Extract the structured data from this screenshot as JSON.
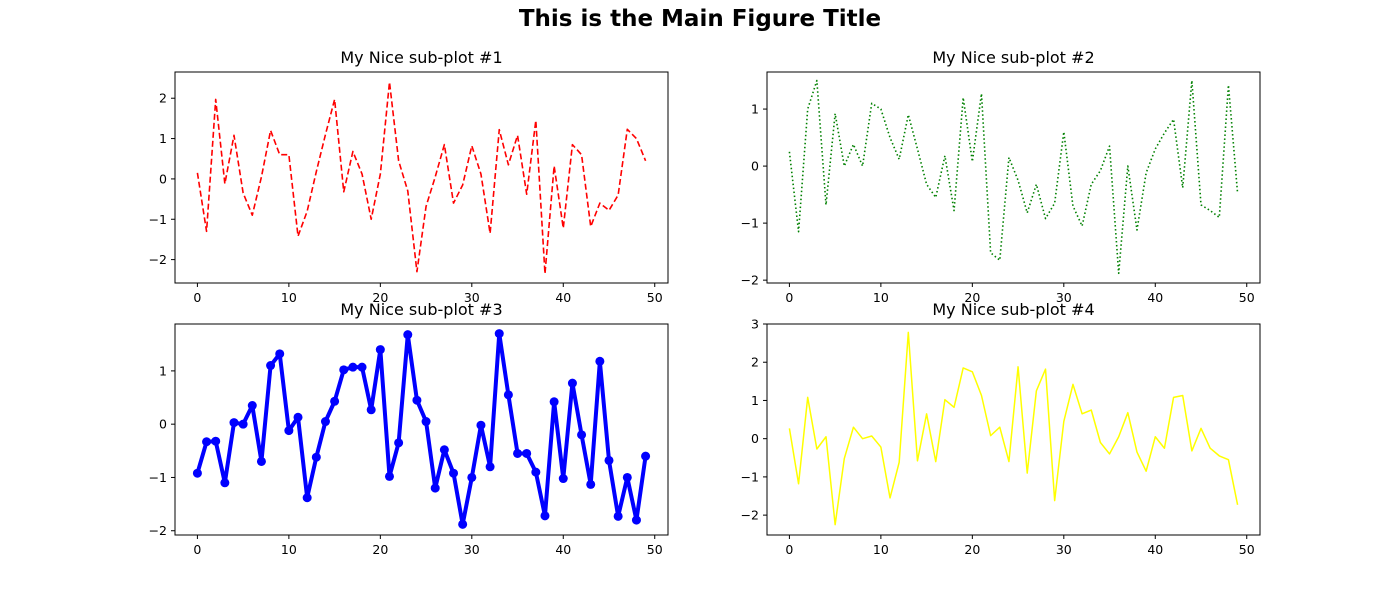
{
  "figure": {
    "title": "This is the Main Figure Title"
  },
  "chart_data": [
    {
      "type": "line",
      "title": "My Nice sub-plot #1",
      "xlabel": "",
      "ylabel": "",
      "xlim": [
        -2.45,
        51.45
      ],
      "ylim": [
        -2.58,
        2.65
      ],
      "xticks": [
        0,
        10,
        20,
        30,
        40,
        50
      ],
      "yticks": [
        -2,
        -1,
        0,
        1,
        2
      ],
      "grid": false,
      "style": {
        "color": "#ff0000",
        "linestyle": "dashed",
        "marker": "none"
      },
      "series": [
        {
          "x": [
            0,
            1,
            2,
            3,
            4,
            5,
            6,
            7,
            8,
            9,
            10,
            11,
            12,
            13,
            14,
            15,
            16,
            17,
            18,
            19,
            20,
            21,
            22,
            23,
            24,
            25,
            26,
            27,
            28,
            29,
            30,
            31,
            32,
            33,
            34,
            35,
            36,
            37,
            38,
            39,
            40,
            41,
            42,
            43,
            44,
            45,
            46,
            47,
            48,
            49
          ],
          "values": [
            0.15,
            -1.3,
            1.97,
            -0.12,
            1.08,
            -0.35,
            -0.9,
            0.05,
            1.2,
            0.6,
            0.6,
            -1.42,
            -0.8,
            0.18,
            1.1,
            1.97,
            -0.32,
            0.68,
            0.12,
            -1.0,
            0.12,
            2.4,
            0.45,
            -0.3,
            -2.3,
            -0.68,
            0.05,
            0.85,
            -0.6,
            -0.15,
            0.82,
            0.12,
            -1.35,
            1.22,
            0.35,
            1.08,
            -0.38,
            1.45,
            -2.35,
            0.32,
            -1.22,
            0.85,
            0.6,
            -1.18,
            -0.6,
            -0.78,
            -0.4,
            1.23,
            1.0,
            0.45
          ]
        }
      ]
    },
    {
      "type": "line",
      "title": "My Nice sub-plot #2",
      "xlabel": "",
      "ylabel": "",
      "xlim": [
        -2.45,
        51.45
      ],
      "ylim": [
        -2.05,
        1.65
      ],
      "xticks": [
        0,
        10,
        20,
        30,
        40,
        50
      ],
      "yticks": [
        -2,
        -1,
        0,
        1
      ],
      "grid": false,
      "style": {
        "color": "#008000",
        "linestyle": "dotted",
        "marker": "none"
      },
      "series": [
        {
          "x": [
            0,
            1,
            2,
            3,
            4,
            5,
            6,
            7,
            8,
            9,
            10,
            11,
            12,
            13,
            14,
            15,
            16,
            17,
            18,
            19,
            20,
            21,
            22,
            23,
            24,
            25,
            26,
            27,
            28,
            29,
            30,
            31,
            32,
            33,
            34,
            35,
            36,
            37,
            38,
            39,
            40,
            41,
            42,
            43,
            44,
            45,
            46,
            47,
            48,
            49
          ],
          "values": [
            0.25,
            -1.15,
            1.0,
            1.5,
            -0.68,
            0.92,
            0.0,
            0.38,
            0.0,
            1.1,
            1.0,
            0.5,
            0.12,
            0.9,
            0.3,
            -0.32,
            -0.55,
            0.18,
            -0.78,
            1.2,
            0.08,
            1.27,
            -1.52,
            -1.65,
            0.15,
            -0.25,
            -0.82,
            -0.32,
            -0.92,
            -0.65,
            0.6,
            -0.7,
            -1.05,
            -0.32,
            -0.08,
            0.35,
            -1.88,
            0.0,
            -1.12,
            -0.12,
            0.3,
            0.58,
            0.82,
            -0.38,
            1.5,
            -0.68,
            -0.78,
            -0.9,
            1.42,
            -0.48
          ]
        }
      ]
    },
    {
      "type": "line",
      "title": "My Nice sub-plot #3",
      "xlabel": "",
      "ylabel": "",
      "xlim": [
        -2.45,
        51.45
      ],
      "ylim": [
        -2.08,
        1.88
      ],
      "xticks": [
        0,
        10,
        20,
        30,
        40,
        50
      ],
      "yticks": [
        -2,
        -1,
        0,
        1
      ],
      "grid": false,
      "style": {
        "color": "#0000ff",
        "linestyle": "solid",
        "marker": "circle",
        "linewidth": 4
      },
      "series": [
        {
          "x": [
            0,
            1,
            2,
            3,
            4,
            5,
            6,
            7,
            8,
            9,
            10,
            11,
            12,
            13,
            14,
            15,
            16,
            17,
            18,
            19,
            20,
            21,
            22,
            23,
            24,
            25,
            26,
            27,
            28,
            29,
            30,
            31,
            32,
            33,
            34,
            35,
            36,
            37,
            38,
            39,
            40,
            41,
            42,
            43,
            44,
            45,
            46,
            47,
            48,
            49
          ],
          "values": [
            -0.92,
            -0.33,
            -0.32,
            -1.1,
            0.03,
            0.0,
            0.35,
            -0.7,
            1.1,
            1.32,
            -0.12,
            0.13,
            -1.38,
            -0.62,
            0.05,
            0.43,
            1.02,
            1.07,
            1.07,
            0.27,
            1.4,
            -0.98,
            -0.35,
            1.68,
            0.45,
            0.05,
            -1.2,
            -0.48,
            -0.92,
            -1.88,
            -1.0,
            -0.02,
            -0.8,
            1.7,
            0.55,
            -0.55,
            -0.55,
            -0.9,
            -1.72,
            0.42,
            -1.02,
            0.77,
            -0.2,
            -1.13,
            1.18,
            -0.68,
            -1.73,
            -1.0,
            -1.8,
            -0.6
          ]
        }
      ]
    },
    {
      "type": "line",
      "title": "My Nice sub-plot #4",
      "xlabel": "",
      "ylabel": "",
      "xlim": [
        -2.45,
        51.45
      ],
      "ylim": [
        -2.52,
        3.0
      ],
      "xticks": [
        0,
        10,
        20,
        30,
        40,
        50
      ],
      "yticks": [
        -2,
        -1,
        0,
        1,
        2,
        3
      ],
      "grid": false,
      "style": {
        "color": "#ffff00",
        "linestyle": "solid",
        "marker": "none",
        "linewidth": 1.5
      },
      "series": [
        {
          "x": [
            0,
            1,
            2,
            3,
            4,
            5,
            6,
            7,
            8,
            9,
            10,
            11,
            12,
            13,
            14,
            15,
            16,
            17,
            18,
            19,
            20,
            21,
            22,
            23,
            24,
            25,
            26,
            27,
            28,
            29,
            30,
            31,
            32,
            33,
            34,
            35,
            36,
            37,
            38,
            39,
            40,
            41,
            42,
            43,
            44,
            45,
            46,
            47,
            48,
            49
          ],
          "values": [
            0.27,
            -1.18,
            1.08,
            -0.27,
            0.05,
            -2.25,
            -0.52,
            0.3,
            0.0,
            0.07,
            -0.22,
            -1.55,
            -0.62,
            2.78,
            -0.58,
            0.65,
            -0.6,
            1.02,
            0.82,
            1.85,
            1.75,
            1.13,
            0.08,
            0.3,
            -0.6,
            1.88,
            -0.9,
            1.25,
            1.82,
            -1.62,
            0.45,
            1.42,
            0.65,
            0.75,
            -0.1,
            -0.4,
            0.05,
            0.68,
            -0.35,
            -0.85,
            0.05,
            -0.25,
            1.08,
            1.13,
            -0.32,
            0.27,
            -0.25,
            -0.45,
            -0.55,
            -1.73
          ]
        }
      ]
    }
  ]
}
